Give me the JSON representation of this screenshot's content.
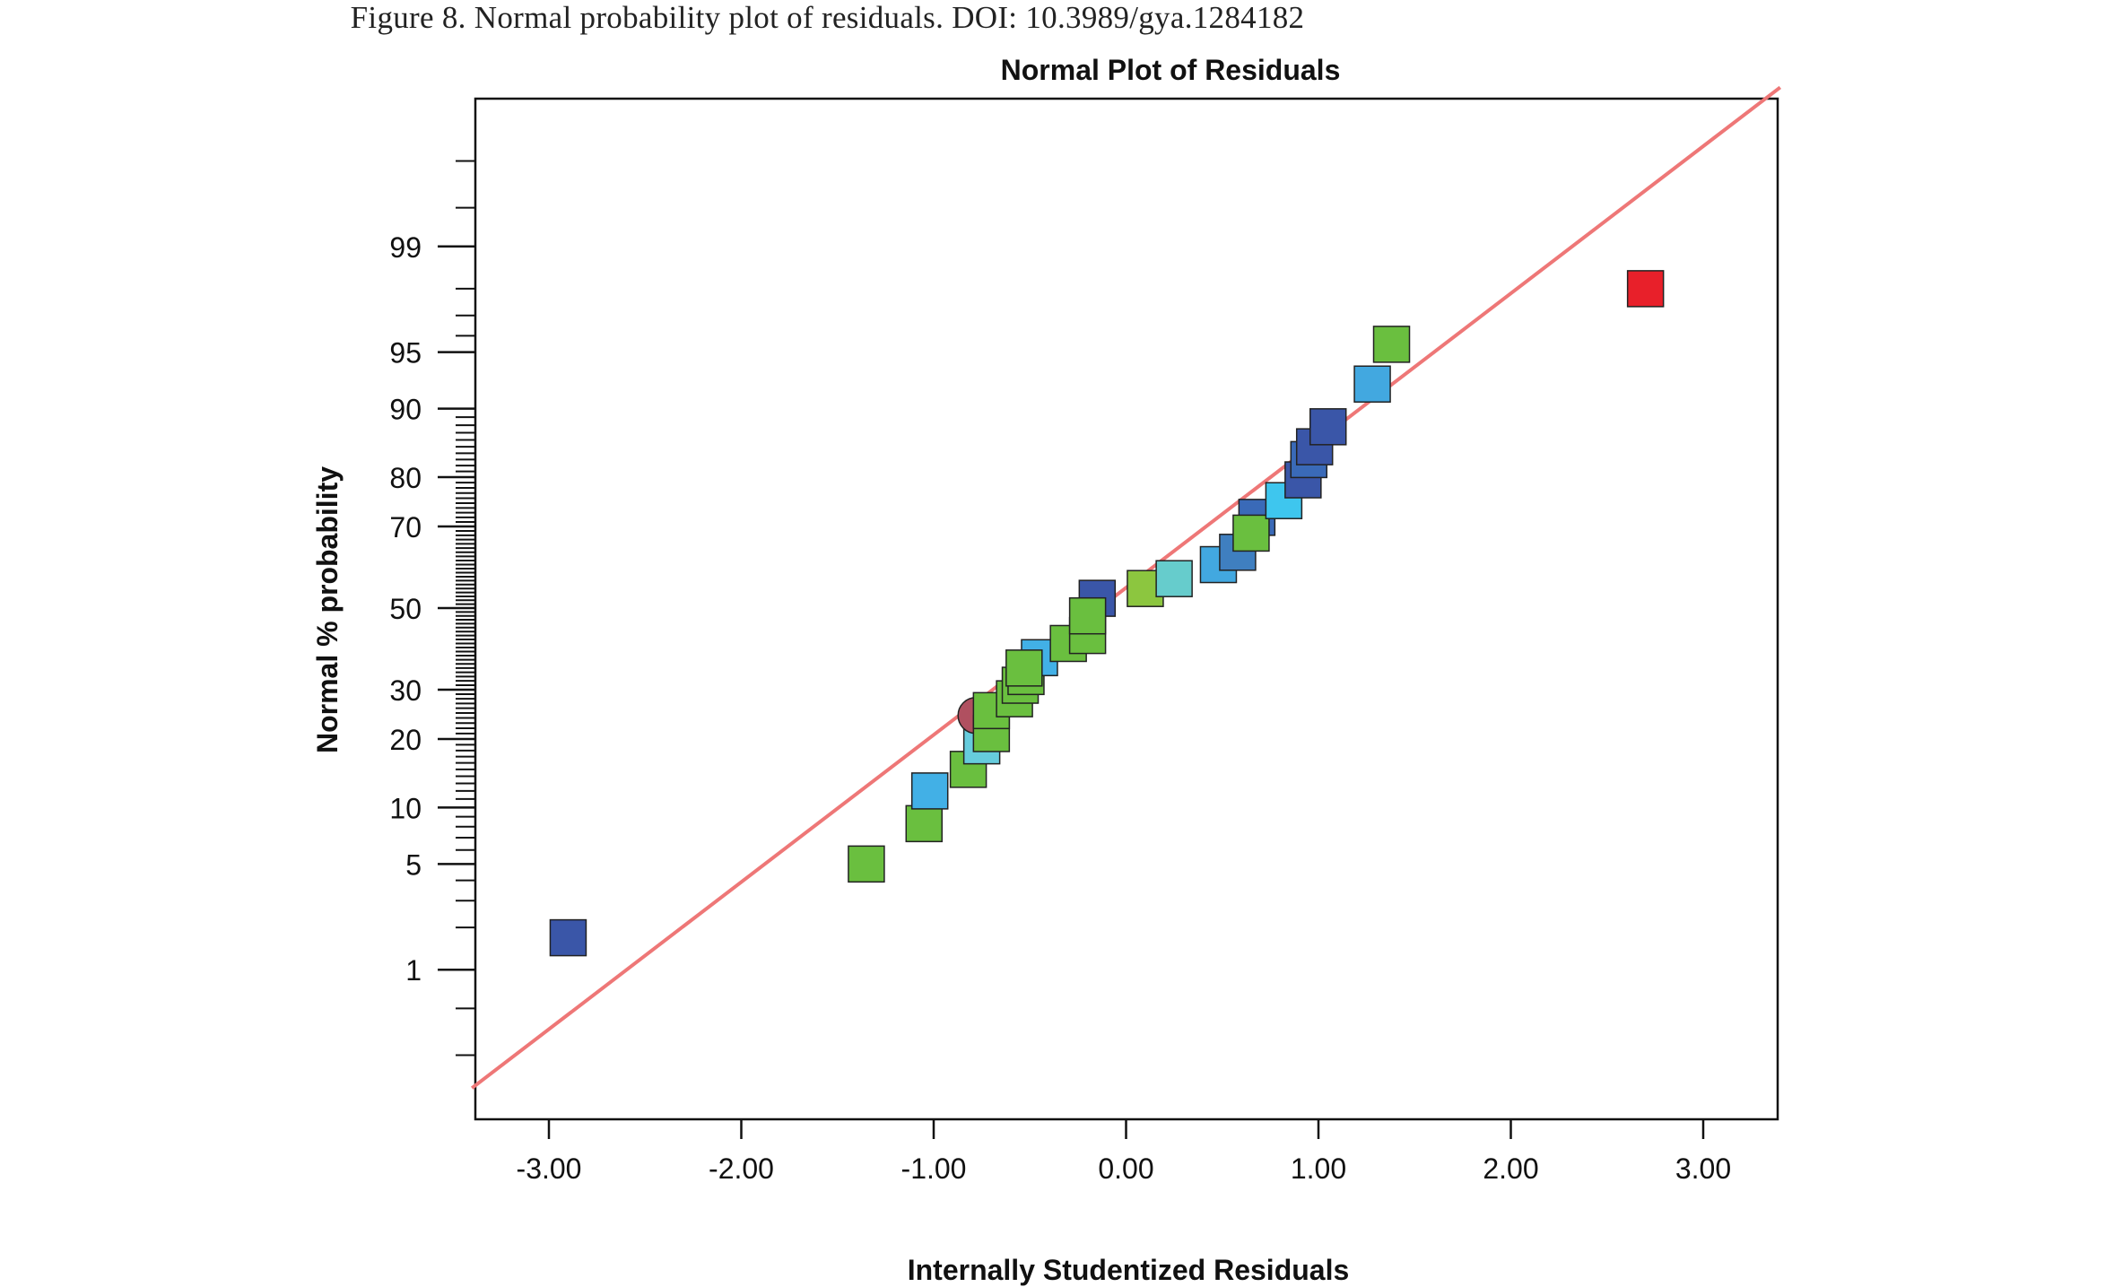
{
  "figure": {
    "caption": "Figure 8. Normal probability plot of residuals. DOI: 10.3989/gya.1284182"
  },
  "chart_data": {
    "type": "scatter",
    "title": "Normal Plot of Residuals",
    "xlabel": "Internally Studentized Residuals",
    "ylabel": "Normal % probability",
    "xlim": [
      -3.4,
      3.4
    ],
    "x_ticks": [
      -3,
      -2,
      -1,
      0,
      1,
      2,
      3
    ],
    "x_tick_labels": [
      "-3.00",
      "-2.00",
      "-1.00",
      "0.00",
      "1.00",
      "2.00",
      "3.00"
    ],
    "y_scale": "normal-probability",
    "y_ticks": [
      1,
      5,
      10,
      20,
      30,
      50,
      70,
      80,
      90,
      95,
      99
    ],
    "y_tick_labels": [
      "1",
      "5",
      "10",
      "20",
      "30",
      "50",
      "70",
      "80",
      "90",
      "95",
      "99"
    ],
    "grid": false,
    "reference_line": {
      "color": "#ee7777",
      "from": [
        -3.4,
        0.1
      ],
      "to": [
        3.4,
        99.96
      ]
    },
    "points": [
      {
        "x": -2.9,
        "y": 1.7,
        "color": "#3a56a8"
      },
      {
        "x": -1.35,
        "y": 5.0,
        "color": "#6abf3f"
      },
      {
        "x": -1.05,
        "y": 8.3,
        "color": "#6abf3f"
      },
      {
        "x": -1.02,
        "y": 12.0,
        "color": "#42b0e6"
      },
      {
        "x": -0.82,
        "y": 15.0,
        "color": "#6abf3f"
      },
      {
        "x": -0.75,
        "y": 18.8,
        "color": "#66ccdd"
      },
      {
        "x": -0.78,
        "y": 24.5,
        "color": "#b05060",
        "shape": "circle"
      },
      {
        "x": -0.7,
        "y": 21.0,
        "color": "#6abf3f"
      },
      {
        "x": -0.7,
        "y": 25.5,
        "color": "#6abf3f"
      },
      {
        "x": -0.58,
        "y": 28.0,
        "color": "#6abf3f"
      },
      {
        "x": -0.55,
        "y": 31.0,
        "color": "#6abf3f"
      },
      {
        "x": -0.52,
        "y": 33.0,
        "color": "#6abf3f"
      },
      {
        "x": -0.45,
        "y": 37.5,
        "color": "#42b0e6"
      },
      {
        "x": -0.53,
        "y": 35.0,
        "color": "#6abf3f"
      },
      {
        "x": -0.3,
        "y": 41.0,
        "color": "#6abf3f"
      },
      {
        "x": -0.2,
        "y": 43.0,
        "color": "#6abf3f"
      },
      {
        "x": -0.15,
        "y": 52.5,
        "color": "#3a56a8"
      },
      {
        "x": -0.2,
        "y": 48.0,
        "color": "#6abf3f"
      },
      {
        "x": 0.1,
        "y": 55.0,
        "color": "#8cc63f"
      },
      {
        "x": 0.25,
        "y": 57.5,
        "color": "#66cccc"
      },
      {
        "x": 0.48,
        "y": 61.0,
        "color": "#42a8e0"
      },
      {
        "x": 0.58,
        "y": 64.0,
        "color": "#3f7fc0"
      },
      {
        "x": 0.68,
        "y": 72.0,
        "color": "#3a6ab8"
      },
      {
        "x": 0.65,
        "y": 68.5,
        "color": "#6abf3f"
      },
      {
        "x": 0.82,
        "y": 75.5,
        "color": "#3ec6ee"
      },
      {
        "x": 0.92,
        "y": 79.5,
        "color": "#3a56a8"
      },
      {
        "x": 0.95,
        "y": 83.0,
        "color": "#3a6ab8"
      },
      {
        "x": 0.98,
        "y": 85.0,
        "color": "#3a56a8"
      },
      {
        "x": 1.05,
        "y": 87.8,
        "color": "#3a56a8"
      },
      {
        "x": 1.28,
        "y": 92.5,
        "color": "#42a8e0"
      },
      {
        "x": 1.38,
        "y": 95.5,
        "color": "#6abf3f"
      },
      {
        "x": 2.7,
        "y": 98.0,
        "color": "#e8202a"
      }
    ]
  }
}
